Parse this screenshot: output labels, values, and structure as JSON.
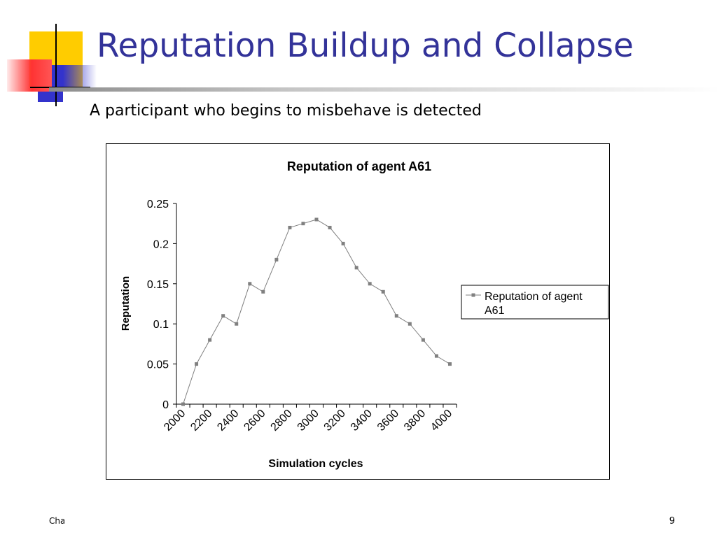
{
  "slide": {
    "title": "Reputation Buildup and Collapse",
    "subtitle": "A participant who begins to misbehave is detected",
    "footer_left": "Cha",
    "page_number": "9"
  },
  "colors": {
    "title": "#333399",
    "deco_yellow": "#ffcc00",
    "deco_red": "#ff3333",
    "deco_blue": "#3333cc",
    "series": "#808080"
  },
  "chart_data": {
    "type": "line",
    "title": "Reputation of agent A61",
    "xlabel": "Simulation cycles",
    "ylabel": "Reputation",
    "x": [
      2000,
      2100,
      2200,
      2300,
      2400,
      2500,
      2600,
      2700,
      2800,
      2900,
      3000,
      3100,
      3200,
      3300,
      3400,
      3500,
      3600,
      3700,
      3800,
      3900,
      4000
    ],
    "series": [
      {
        "name": "Reputation of agent A61",
        "values": [
          0,
          0.05,
          0.08,
          0.11,
          0.1,
          0.15,
          0.14,
          0.18,
          0.22,
          0.225,
          0.23,
          0.22,
          0.2,
          0.17,
          0.15,
          0.14,
          0.11,
          0.1,
          0.08,
          0.06,
          0.05
        ]
      }
    ],
    "x_tick_labels": [
      "2000",
      "2200",
      "2400",
      "2600",
      "2800",
      "3000",
      "3200",
      "3400",
      "3600",
      "3800",
      "4000"
    ],
    "y_ticks": [
      0,
      0.05,
      0.1,
      0.15,
      0.2,
      0.25
    ],
    "y_tick_labels": [
      "0",
      "0.05",
      "0.1",
      "0.15",
      "0.2",
      "0.25"
    ],
    "ylim": [
      0,
      0.25
    ],
    "grid": false,
    "legend": {
      "position": "right",
      "lines": [
        "Reputation of agent",
        "A61"
      ]
    }
  }
}
